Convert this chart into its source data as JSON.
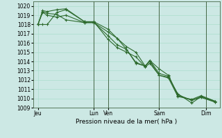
{
  "background_color": "#cce8e4",
  "grid_color": "#aaddcc",
  "line_color": "#2d6a2d",
  "marker_color": "#2d6a2d",
  "xlabel": "Pression niveau de la mer( hPa )",
  "ylim": [
    1009,
    1020.5
  ],
  "ytick_vals": [
    1009,
    1010,
    1011,
    1012,
    1013,
    1014,
    1015,
    1016,
    1017,
    1018,
    1019,
    1020
  ],
  "xlim": [
    0,
    20
  ],
  "xtick_positions": [
    0.5,
    6.5,
    8.0,
    13.5,
    18.5
  ],
  "xtick_labels": [
    "Jeu",
    "Lun",
    "Ven",
    "Sam",
    "Dim"
  ],
  "vline_positions": [
    6.5,
    8.0,
    13.5,
    18.5
  ],
  "series": [
    {
      "x": [
        0.5,
        1.0,
        1.5,
        2.5,
        3.5,
        5.5,
        6.5,
        8.0,
        9.0,
        10.0,
        11.0,
        12.0,
        12.5,
        13.5,
        14.5,
        15.5,
        17.0,
        18.0,
        19.5
      ],
      "y": [
        1018.0,
        1018.0,
        1018.0,
        1019.3,
        1019.6,
        1018.3,
        1018.3,
        1017.5,
        1016.5,
        1015.6,
        1015.0,
        1013.5,
        1014.1,
        1013.2,
        1012.5,
        1010.3,
        1009.8,
        1010.2,
        1009.7
      ]
    },
    {
      "x": [
        0.5,
        1.0,
        1.5,
        2.5,
        3.5,
        5.5,
        6.5,
        8.0,
        9.0,
        10.0,
        11.0,
        12.0,
        12.5,
        13.5,
        14.5,
        15.5,
        17.0,
        18.0,
        19.5
      ],
      "y": [
        1018.0,
        1019.5,
        1019.4,
        1019.6,
        1019.7,
        1018.3,
        1018.3,
        1016.4,
        1015.5,
        1015.0,
        1014.5,
        1013.4,
        1013.8,
        1012.5,
        1012.3,
        1010.5,
        1009.5,
        1010.2,
        1009.6
      ]
    },
    {
      "x": [
        0.5,
        1.0,
        1.5,
        2.5,
        3.5,
        5.5,
        6.5,
        8.0,
        9.0,
        10.0,
        11.0,
        12.0,
        12.5,
        13.5,
        14.5,
        15.5,
        17.0,
        18.0,
        19.5
      ],
      "y": [
        1018.0,
        1019.4,
        1019.2,
        1019.1,
        1018.5,
        1018.2,
        1018.2,
        1016.8,
        1015.8,
        1015.3,
        1013.9,
        1013.5,
        1014.0,
        1012.5,
        1012.2,
        1010.2,
        1009.9,
        1010.3,
        1009.7
      ]
    },
    {
      "x": [
        0.5,
        1.0,
        1.5,
        2.5,
        3.5,
        5.5,
        6.5,
        8.0,
        9.0,
        10.0,
        11.0,
        12.0,
        12.5,
        13.5,
        14.5,
        15.5,
        17.0,
        18.0,
        19.5
      ],
      "y": [
        1018.0,
        1019.3,
        1019.0,
        1018.8,
        1019.0,
        1018.2,
        1018.2,
        1017.2,
        1016.5,
        1015.3,
        1013.8,
        1013.5,
        1014.1,
        1012.7,
        1012.4,
        1010.4,
        1009.8,
        1010.1,
        1009.6
      ]
    }
  ]
}
